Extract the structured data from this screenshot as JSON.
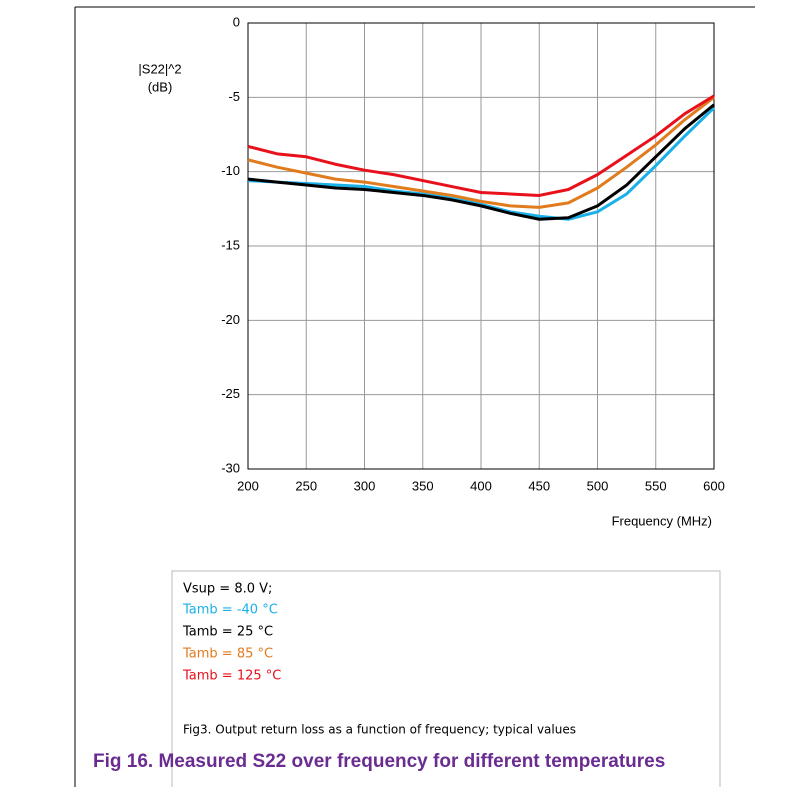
{
  "chart_data": {
    "type": "line",
    "title": "Fig 16. Measured S22 over frequency for different temperatures",
    "y_label_lines": [
      "|S22|^2",
      "(dB)"
    ],
    "x_label": "Frequency (MHz)",
    "legend_heading": "Vsup = 8.0 V;",
    "caption": "Fig3.  Output return loss as a function of frequency; typical values",
    "x": [
      200,
      225,
      250,
      275,
      300,
      325,
      350,
      375,
      400,
      425,
      450,
      475,
      500,
      525,
      550,
      575,
      600
    ],
    "xlim": [
      200,
      600
    ],
    "xticks": [
      200,
      250,
      300,
      350,
      400,
      450,
      500,
      550,
      600
    ],
    "ylim": [
      -30,
      0
    ],
    "yticks": [
      -30,
      -25,
      -20,
      -15,
      -10,
      -5,
      0
    ],
    "grid": true,
    "series": [
      {
        "name": "Tamb = -40 °C",
        "color": "#1ab0e8",
        "values": [
          -10.6,
          -10.7,
          -10.8,
          -10.9,
          -11.0,
          -11.3,
          -11.5,
          -11.8,
          -12.2,
          -12.7,
          -13.0,
          -13.2,
          -12.7,
          -11.5,
          -9.6,
          -7.6,
          -5.7
        ]
      },
      {
        "name": "Tamb = 25 °C",
        "color": "#000000",
        "values": [
          -10.5,
          -10.7,
          -10.9,
          -11.1,
          -11.2,
          -11.4,
          -11.6,
          -11.9,
          -12.3,
          -12.8,
          -13.2,
          -13.1,
          -12.3,
          -10.9,
          -9.0,
          -7.1,
          -5.5
        ]
      },
      {
        "name": "Tamb = 85 °C",
        "color": "#e07c1e",
        "values": [
          -9.2,
          -9.7,
          -10.1,
          -10.5,
          -10.7,
          -11.0,
          -11.3,
          -11.6,
          -12.0,
          -12.3,
          -12.4,
          -12.1,
          -11.1,
          -9.7,
          -8.2,
          -6.5,
          -5.0
        ]
      },
      {
        "name": "Tamb = 125 °C",
        "color": "#e8101a",
        "values": [
          -8.3,
          -8.8,
          -9.0,
          -9.5,
          -9.9,
          -10.2,
          -10.6,
          -11.0,
          -11.4,
          -11.5,
          -11.6,
          -11.2,
          -10.2,
          -8.9,
          -7.6,
          -6.1,
          -4.9
        ]
      }
    ]
  }
}
